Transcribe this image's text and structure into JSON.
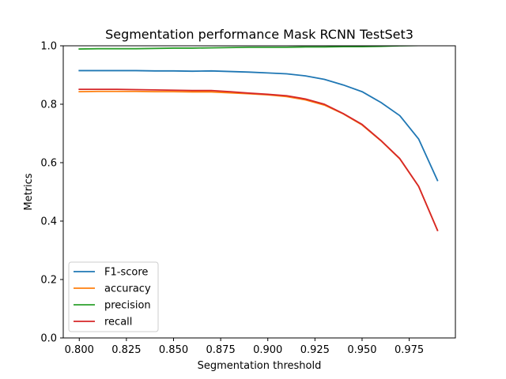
{
  "chart_data": {
    "type": "line",
    "title": "Segmentation performance Mask RCNN TestSet3",
    "xlabel": "Segmentation threshold",
    "ylabel": "Metrics",
    "xlim": [
      0.7915,
      0.9995
    ],
    "ylim": [
      0.0,
      1.0
    ],
    "xticks": [
      0.8,
      0.825,
      0.85,
      0.875,
      0.9,
      0.925,
      0.95,
      0.975
    ],
    "xtick_labels": [
      "0.800",
      "0.825",
      "0.850",
      "0.875",
      "0.900",
      "0.925",
      "0.950",
      "0.975"
    ],
    "yticks": [
      0.0,
      0.2,
      0.4,
      0.6,
      0.8,
      1.0
    ],
    "ytick_labels": [
      "0.0",
      "0.2",
      "0.4",
      "0.6",
      "0.8",
      "1.0"
    ],
    "grid": false,
    "legend_position": "lower-left",
    "x": [
      0.8,
      0.81,
      0.82,
      0.83,
      0.84,
      0.85,
      0.86,
      0.87,
      0.88,
      0.89,
      0.9,
      0.91,
      0.92,
      0.93,
      0.94,
      0.95,
      0.96,
      0.97,
      0.98,
      0.99
    ],
    "series": [
      {
        "name": "F1-score",
        "color": "#1f77b4",
        "values": [
          0.915,
          0.915,
          0.915,
          0.915,
          0.914,
          0.914,
          0.913,
          0.914,
          0.912,
          0.91,
          0.907,
          0.904,
          0.897,
          0.885,
          0.866,
          0.843,
          0.806,
          0.761,
          0.681,
          0.539
        ]
      },
      {
        "name": "accuracy",
        "color": "#ff7f0e",
        "values": [
          0.843,
          0.844,
          0.844,
          0.844,
          0.843,
          0.843,
          0.842,
          0.842,
          0.839,
          0.836,
          0.832,
          0.826,
          0.815,
          0.797,
          0.767,
          0.729,
          0.675,
          0.613,
          0.519,
          0.369
        ]
      },
      {
        "name": "precision",
        "color": "#2ca02c",
        "values": [
          0.989,
          0.99,
          0.99,
          0.99,
          0.991,
          0.992,
          0.992,
          0.993,
          0.994,
          0.995,
          0.995,
          0.995,
          0.996,
          0.996,
          0.997,
          0.997,
          0.998,
          1.0,
          1.001,
          1.002
        ]
      },
      {
        "name": "recall",
        "color": "#d62728",
        "values": [
          0.851,
          0.851,
          0.851,
          0.85,
          0.849,
          0.848,
          0.847,
          0.847,
          0.843,
          0.838,
          0.834,
          0.829,
          0.818,
          0.8,
          0.768,
          0.731,
          0.676,
          0.614,
          0.519,
          0.368
        ]
      }
    ]
  }
}
